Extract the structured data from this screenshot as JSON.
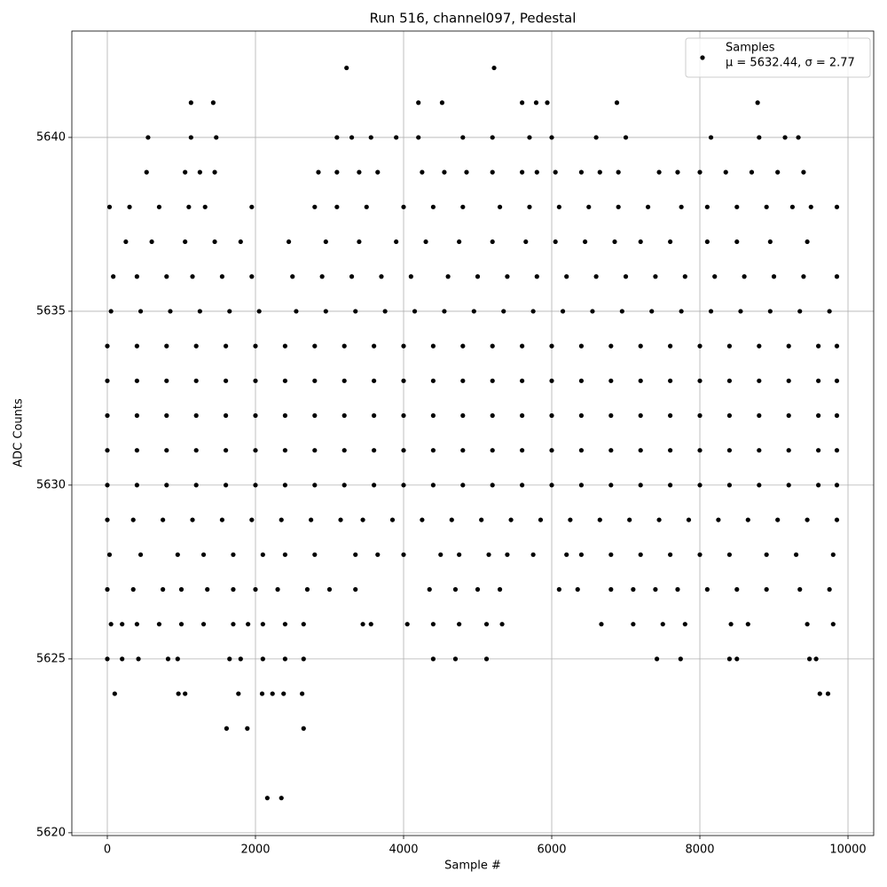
{
  "chart_data": {
    "type": "scatter",
    "title": "Run 516, channel097, Pedestal",
    "xlabel": "Sample #",
    "ylabel": "ADC Counts",
    "xlim": [
      -479,
      10347
    ],
    "ylim": [
      5619.92,
      5643.06
    ],
    "xticks": [
      0,
      2000,
      4000,
      6000,
      8000,
      10000
    ],
    "yticks": [
      5620,
      5625,
      5630,
      5635,
      5640
    ],
    "grid": true,
    "legend": "upper right",
    "legend_note": "μ = 5632.44, σ = 2.77",
    "series": [
      {
        "name": "Samples",
        "color": "#000000",
        "x": [
          3230,
          5222,
          1130,
          1430,
          4200,
          4520,
          5600,
          5790,
          5940,
          6880,
          8780,
          550,
          1130,
          1470,
          3100,
          3300,
          3560,
          3900,
          4200,
          4800,
          5200,
          5700,
          6000,
          6600,
          7000,
          8150,
          8800,
          9150,
          9330,
          530,
          1050,
          1250,
          1450,
          2850,
          3100,
          3400,
          3650,
          4250,
          4550,
          4850,
          5200,
          5600,
          5800,
          6050,
          6400,
          6650,
          6900,
          7450,
          7700,
          8000,
          8350,
          8700,
          9050,
          9400,
          30,
          300,
          700,
          1100,
          1320,
          1950,
          2800,
          3100,
          3500,
          4000,
          4400,
          4800,
          5300,
          5700,
          6100,
          6500,
          6900,
          7300,
          7750,
          8100,
          8500,
          8900,
          9250,
          9500,
          9850,
          250,
          600,
          1050,
          1450,
          1800,
          2450,
          2950,
          3400,
          3900,
          4300,
          4750,
          5200,
          5650,
          6050,
          6450,
          6850,
          7200,
          7600,
          8100,
          8500,
          8950,
          9450,
          80,
          400,
          800,
          1150,
          1550,
          1950,
          2500,
          2900,
          3300,
          3700,
          4100,
          4600,
          5000,
          5400,
          5800,
          6200,
          6600,
          7000,
          7400,
          7800,
          8200,
          8600,
          9000,
          9400,
          9850,
          50,
          450,
          850,
          1250,
          1650,
          2050,
          2550,
          2950,
          3350,
          3750,
          4150,
          4550,
          4950,
          5350,
          5750,
          6150,
          6550,
          6950,
          7350,
          7750,
          8150,
          8550,
          8950,
          9350,
          9750,
          0,
          400,
          800,
          1200,
          1600,
          2000,
          2400,
          2800,
          3200,
          3600,
          4000,
          4400,
          4800,
          5200,
          5600,
          6000,
          6400,
          6800,
          7200,
          7600,
          8000,
          8400,
          8800,
          9200,
          9600,
          9850,
          0,
          400,
          800,
          1200,
          1600,
          2000,
          2400,
          2800,
          3200,
          3600,
          4000,
          4400,
          4800,
          5200,
          5600,
          6000,
          6400,
          6800,
          7200,
          7600,
          8000,
          8400,
          8800,
          9200,
          9600,
          9850,
          0,
          400,
          800,
          1200,
          1600,
          2000,
          2400,
          2800,
          3200,
          3600,
          4000,
          4400,
          4800,
          5200,
          5600,
          6000,
          6400,
          6800,
          7200,
          7600,
          8000,
          8400,
          8800,
          9200,
          9600,
          9850,
          0,
          400,
          800,
          1200,
          1600,
          2000,
          2400,
          2800,
          3200,
          3600,
          4000,
          4400,
          4800,
          5200,
          5600,
          6000,
          6400,
          6800,
          7200,
          7600,
          8000,
          8400,
          8800,
          9200,
          9600,
          9850,
          0,
          400,
          800,
          1200,
          1600,
          2000,
          2400,
          2800,
          3200,
          3600,
          4000,
          4400,
          4800,
          5200,
          5600,
          6000,
          6400,
          6800,
          7200,
          7600,
          8000,
          8400,
          8800,
          9200,
          9600,
          9850,
          0,
          350,
          750,
          1150,
          1550,
          1950,
          2350,
          2750,
          3150,
          3450,
          3850,
          4250,
          4650,
          5050,
          5450,
          5850,
          6250,
          6650,
          7050,
          7450,
          7850,
          8250,
          8650,
          9050,
          9450,
          9850,
          30,
          450,
          950,
          1300,
          1700,
          2100,
          2400,
          2800,
          3350,
          3650,
          4000,
          4500,
          4750,
          5150,
          5400,
          5750,
          6200,
          6400,
          6800,
          7200,
          7600,
          8000,
          8400,
          8900,
          9300,
          9800,
          0,
          350,
          750,
          1000,
          1350,
          1700,
          2000,
          2300,
          2700,
          3000,
          3350,
          4350,
          4700,
          5000,
          5300,
          6100,
          6350,
          6800,
          7100,
          7400,
          7700,
          8100,
          8500,
          8900,
          9350,
          9750,
          50,
          200,
          400,
          700,
          1000,
          1300,
          1700,
          1900,
          2100,
          2400,
          2650,
          3450,
          3560,
          4050,
          4400,
          4750,
          5120,
          5330,
          6670,
          7100,
          7500,
          7800,
          8420,
          8650,
          9450,
          9800,
          0,
          200,
          420,
          820,
          950,
          1650,
          1800,
          2100,
          2400,
          2650,
          4400,
          4700,
          5120,
          7420,
          7740,
          8400,
          8500,
          9480,
          9570,
          100,
          960,
          1050,
          1770,
          2090,
          2230,
          2380,
          2630,
          9620,
          9730,
          1610,
          1890,
          2650,
          2160,
          2350
        ],
        "values": [
          5642,
          5642,
          5641,
          5641,
          5641,
          5641,
          5641,
          5641,
          5641,
          5641,
          5641,
          5640,
          5640,
          5640,
          5640,
          5640,
          5640,
          5640,
          5640,
          5640,
          5640,
          5640,
          5640,
          5640,
          5640,
          5640,
          5640,
          5640,
          5640,
          5639,
          5639,
          5639,
          5639,
          5639,
          5639,
          5639,
          5639,
          5639,
          5639,
          5639,
          5639,
          5639,
          5639,
          5639,
          5639,
          5639,
          5639,
          5639,
          5639,
          5639,
          5639,
          5639,
          5639,
          5639,
          5638,
          5638,
          5638,
          5638,
          5638,
          5638,
          5638,
          5638,
          5638,
          5638,
          5638,
          5638,
          5638,
          5638,
          5638,
          5638,
          5638,
          5638,
          5638,
          5638,
          5638,
          5638,
          5638,
          5638,
          5638,
          5637,
          5637,
          5637,
          5637,
          5637,
          5637,
          5637,
          5637,
          5637,
          5637,
          5637,
          5637,
          5637,
          5637,
          5637,
          5637,
          5637,
          5637,
          5637,
          5637,
          5637,
          5637,
          5636,
          5636,
          5636,
          5636,
          5636,
          5636,
          5636,
          5636,
          5636,
          5636,
          5636,
          5636,
          5636,
          5636,
          5636,
          5636,
          5636,
          5636,
          5636,
          5636,
          5636,
          5636,
          5636,
          5636,
          5636,
          5635,
          5635,
          5635,
          5635,
          5635,
          5635,
          5635,
          5635,
          5635,
          5635,
          5635,
          5635,
          5635,
          5635,
          5635,
          5635,
          5635,
          5635,
          5635,
          5635,
          5635,
          5635,
          5635,
          5635,
          5635,
          5634,
          5634,
          5634,
          5634,
          5634,
          5634,
          5634,
          5634,
          5634,
          5634,
          5634,
          5634,
          5634,
          5634,
          5634,
          5634,
          5634,
          5634,
          5634,
          5634,
          5634,
          5634,
          5634,
          5634,
          5634,
          5634,
          5633,
          5633,
          5633,
          5633,
          5633,
          5633,
          5633,
          5633,
          5633,
          5633,
          5633,
          5633,
          5633,
          5633,
          5633,
          5633,
          5633,
          5633,
          5633,
          5633,
          5633,
          5633,
          5633,
          5633,
          5633,
          5633,
          5632,
          5632,
          5632,
          5632,
          5632,
          5632,
          5632,
          5632,
          5632,
          5632,
          5632,
          5632,
          5632,
          5632,
          5632,
          5632,
          5632,
          5632,
          5632,
          5632,
          5632,
          5632,
          5632,
          5632,
          5632,
          5632,
          5631,
          5631,
          5631,
          5631,
          5631,
          5631,
          5631,
          5631,
          5631,
          5631,
          5631,
          5631,
          5631,
          5631,
          5631,
          5631,
          5631,
          5631,
          5631,
          5631,
          5631,
          5631,
          5631,
          5631,
          5631,
          5631,
          5630,
          5630,
          5630,
          5630,
          5630,
          5630,
          5630,
          5630,
          5630,
          5630,
          5630,
          5630,
          5630,
          5630,
          5630,
          5630,
          5630,
          5630,
          5630,
          5630,
          5630,
          5630,
          5630,
          5630,
          5630,
          5630,
          5629,
          5629,
          5629,
          5629,
          5629,
          5629,
          5629,
          5629,
          5629,
          5629,
          5629,
          5629,
          5629,
          5629,
          5629,
          5629,
          5629,
          5629,
          5629,
          5629,
          5629,
          5629,
          5629,
          5629,
          5629,
          5629,
          5628,
          5628,
          5628,
          5628,
          5628,
          5628,
          5628,
          5628,
          5628,
          5628,
          5628,
          5628,
          5628,
          5628,
          5628,
          5628,
          5628,
          5628,
          5628,
          5628,
          5628,
          5628,
          5628,
          5628,
          5628,
          5628,
          5627,
          5627,
          5627,
          5627,
          5627,
          5627,
          5627,
          5627,
          5627,
          5627,
          5627,
          5627,
          5627,
          5627,
          5627,
          5627,
          5627,
          5627,
          5627,
          5627,
          5627,
          5627,
          5627,
          5627,
          5627,
          5627,
          5626,
          5626,
          5626,
          5626,
          5626,
          5626,
          5626,
          5626,
          5626,
          5626,
          5626,
          5626,
          5626,
          5626,
          5626,
          5626,
          5626,
          5626,
          5626,
          5626,
          5626,
          5626,
          5626,
          5626,
          5626,
          5626,
          5625,
          5625,
          5625,
          5625,
          5625,
          5625,
          5625,
          5625,
          5625,
          5625,
          5625,
          5625,
          5625,
          5625,
          5625,
          5625,
          5625,
          5625,
          5625,
          5624,
          5624,
          5624,
          5624,
          5624,
          5624,
          5624,
          5624,
          5624,
          5624,
          5623,
          5623,
          5623,
          5621,
          5621
        ]
      }
    ]
  }
}
